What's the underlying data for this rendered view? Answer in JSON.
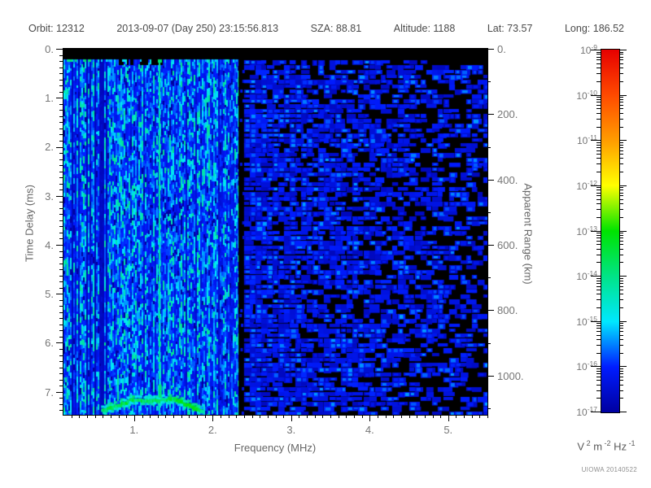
{
  "header": {
    "segments": [
      "Orbit: 12312",
      "2013-09-07 (Day 250) 23:15:56.813",
      "SZA: 88.81",
      "Altitude: 1188",
      "Lat: 73.57",
      "Long: 186.52"
    ]
  },
  "chart_data": {
    "type": "heatmap",
    "subtype": "radar-sounder-ionogram-spectrogram",
    "x_axis": {
      "label": "Frequency (MHz)",
      "min": 0.1,
      "max": 5.5,
      "major_ticks": [
        1,
        2,
        3,
        4,
        5
      ],
      "tick_labels": [
        "1.",
        "2.",
        "3.",
        "4.",
        "5."
      ],
      "minor_tick_step": 0.1
    },
    "y_axis": {
      "label": "Time Delay (ms)",
      "min": 0,
      "max": 7.47,
      "inverted": true,
      "major_ticks": [
        0,
        1,
        2,
        3,
        4,
        5,
        6,
        7
      ],
      "tick_labels": [
        "0.",
        "1.",
        "2.",
        "3.",
        "4.",
        "5.",
        "6.",
        "7."
      ],
      "minor_tick_step": 0.125
    },
    "y2_axis": {
      "label": "Apparent Range (km)",
      "min": 0,
      "max": 1120,
      "major_ticks": [
        0,
        200,
        400,
        600,
        800,
        1000
      ],
      "tick_labels": [
        "0.",
        "200.",
        "400.",
        "600.",
        "800.",
        "1000."
      ],
      "minor_tick_step": 100
    },
    "colorbar": {
      "scale": "log",
      "min_exp": -17,
      "max_exp": -9,
      "tick_exponents": [
        -9,
        -10,
        -11,
        -12,
        -13,
        -14,
        -15,
        -16,
        -17
      ],
      "tick_base": "10",
      "units_parts": [
        [
          "V",
          "2"
        ],
        [
          "m",
          "-2"
        ],
        [
          "Hz",
          "-1"
        ]
      ],
      "gradient_stops": [
        {
          "t": 0.0,
          "c": "#0000A0"
        },
        {
          "t": 0.125,
          "c": "#001CFF"
        },
        {
          "t": 0.25,
          "c": "#00E8FF"
        },
        {
          "t": 0.375,
          "c": "#00E487"
        },
        {
          "t": 0.5,
          "c": "#00E400"
        },
        {
          "t": 0.625,
          "c": "#FFFF00"
        },
        {
          "t": 0.75,
          "c": "#FF9C00"
        },
        {
          "t": 0.875,
          "c": "#FF4A00"
        },
        {
          "t": 1.0,
          "c": "#E60000"
        }
      ]
    },
    "features": [
      {
        "name": "transmit-blanking black band",
        "time_delay_ms": [
          0,
          0.22
        ],
        "frequency_MHz": [
          0.1,
          5.5
        ]
      },
      {
        "name": "bright broadband noise region",
        "frequency_MHz": [
          0.1,
          2.33
        ],
        "typical_power": "1e-16 to 1e-14"
      },
      {
        "name": "dark striation cluster",
        "frequency_MHz": [
          0.38,
          0.66
        ]
      },
      {
        "name": "electron plasma oscillation line (pale cyan vertical)",
        "frequency_MHz": 1.32
      },
      {
        "name": "attenuation gap (black vertical band)",
        "frequency_MHz": [
          2.33,
          2.41
        ]
      },
      {
        "name": "weak blobby noise floor fading with frequency",
        "frequency_MHz": [
          2.41,
          5.5
        ],
        "typical_power": "1e-17 to 1e-15.5"
      },
      {
        "name": "ionospheric echo trace (green-cyan arc)",
        "frequency_MHz": [
          0.6,
          1.87
        ],
        "time_delay_ms": [
          7.1,
          7.4
        ]
      }
    ]
  },
  "credit": "UIOWA 20140522",
  "colors": {
    "background": "#ffffff",
    "frame": "#000000",
    "header_text": "#4a4a4a",
    "axis_text": "#757575"
  }
}
